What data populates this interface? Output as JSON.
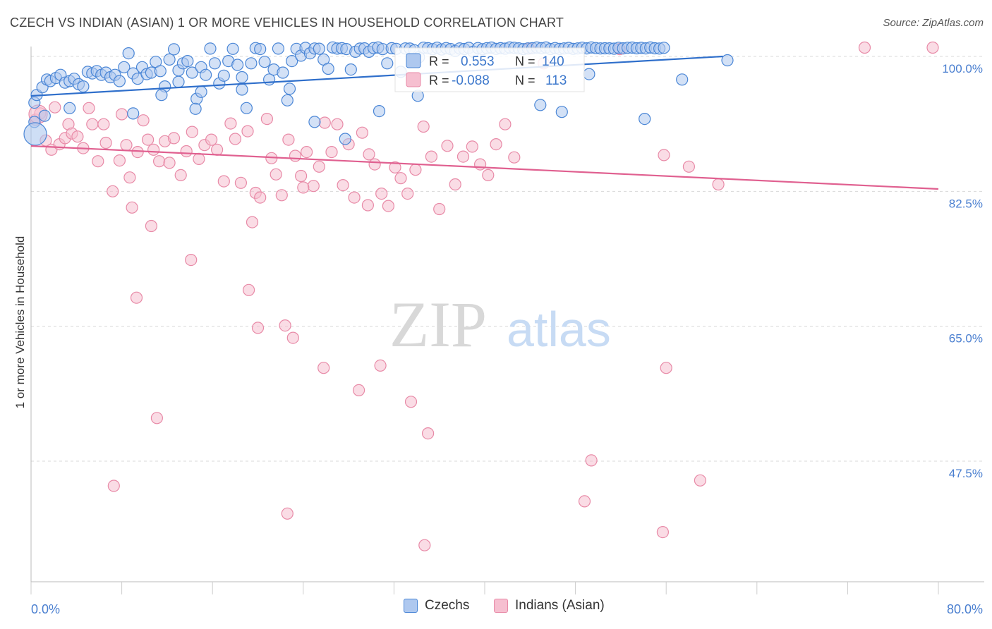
{
  "title": "CZECH VS INDIAN (ASIAN) 1 OR MORE VEHICLES IN HOUSEHOLD CORRELATION CHART",
  "source": "Source: ZipAtlas.com",
  "watermark": {
    "zip": "ZIP",
    "atlas": "atlas"
  },
  "colors": {
    "czech_fill": "#aec8ef",
    "czech_stroke": "#4a86d6",
    "czech_line": "#2f6fcb",
    "indian_fill": "#f6bfd0",
    "indian_stroke": "#e88aa7",
    "indian_line": "#e06090",
    "axis_text": "#4a7fd0",
    "grid": "#d8d8d8"
  },
  "stats_box": {
    "rows": [
      {
        "r_label": "R =",
        "r_value": "0.553",
        "n_label": "N =",
        "n_value": "140"
      },
      {
        "r_label": "R =",
        "r_value": "-0.088",
        "n_label": "N =",
        "n_value": "113"
      }
    ]
  },
  "legend": {
    "czech": "Czechs",
    "indian": "Indians (Asian)"
  },
  "chart_data": {
    "type": "scatter",
    "title": "CZECH VS INDIAN (ASIAN) 1 OR MORE VEHICLES IN HOUSEHOLD CORRELATION CHART",
    "xlabel": "",
    "ylabel": "1 or more Vehicles in Household",
    "xlim": [
      0,
      80
    ],
    "ylim": [
      30,
      100
    ],
    "x_tick_labels": [
      "0.0%",
      "80.0%"
    ],
    "y_ticks": [
      47.5,
      65.0,
      82.5,
      100.0
    ],
    "y_tick_labels": [
      "47.5%",
      "65.0%",
      "82.5%",
      "100.0%"
    ],
    "grid": true,
    "legend_position": "bottom",
    "series": [
      {
        "name": "Czechs",
        "r": 0.553,
        "n": 140,
        "trend": [
          [
            0,
            97.4
          ],
          [
            61,
            100.9
          ]
        ],
        "points": [
          [
            0.3,
            94.0
          ],
          [
            0.5,
            95.0
          ],
          [
            1.0,
            96.0
          ],
          [
            1.4,
            97.0
          ],
          [
            1.7,
            96.8
          ],
          [
            2.2,
            97.2
          ],
          [
            2.6,
            97.6
          ],
          [
            3.0,
            96.6
          ],
          [
            3.4,
            96.8
          ],
          [
            3.8,
            97.1
          ],
          [
            4.2,
            96.4
          ],
          [
            4.6,
            96.1
          ],
          [
            5.0,
            98.0
          ],
          [
            5.4,
            97.8
          ],
          [
            5.8,
            98.1
          ],
          [
            6.2,
            97.6
          ],
          [
            6.6,
            97.9
          ],
          [
            7.0,
            97.3
          ],
          [
            7.4,
            97.6
          ],
          [
            7.8,
            96.8
          ],
          [
            8.2,
            98.6
          ],
          [
            8.6,
            100.4
          ],
          [
            9.0,
            97.8
          ],
          [
            9.4,
            97.1
          ],
          [
            9.8,
            98.6
          ],
          [
            10.2,
            97.7
          ],
          [
            10.6,
            97.9
          ],
          [
            11.0,
            99.3
          ],
          [
            11.4,
            98.1
          ],
          [
            11.8,
            96.1
          ],
          [
            12.2,
            99.6
          ],
          [
            12.6,
            101.0
          ],
          [
            13.0,
            98.2
          ],
          [
            13.4,
            99.1
          ],
          [
            13.8,
            99.4
          ],
          [
            14.2,
            97.9
          ],
          [
            14.6,
            94.5
          ],
          [
            15.0,
            98.6
          ],
          [
            15.4,
            97.6
          ],
          [
            15.8,
            101.9
          ],
          [
            16.2,
            99.1
          ],
          [
            16.6,
            96.5
          ],
          [
            17.0,
            97.5
          ],
          [
            17.4,
            99.4
          ],
          [
            17.8,
            101.6
          ],
          [
            18.2,
            98.9
          ],
          [
            18.6,
            97.3
          ],
          [
            19.0,
            93.3
          ],
          [
            19.4,
            99.1
          ],
          [
            19.8,
            102.6
          ],
          [
            20.2,
            101.3
          ],
          [
            20.6,
            99.3
          ],
          [
            21.0,
            97.0
          ],
          [
            21.4,
            98.3
          ],
          [
            21.8,
            101.9
          ],
          [
            22.2,
            97.9
          ],
          [
            22.6,
            94.3
          ],
          [
            23.0,
            99.4
          ],
          [
            23.4,
            101.6
          ],
          [
            23.8,
            100.1
          ],
          [
            24.2,
            102.8
          ],
          [
            24.6,
            100.4
          ],
          [
            25.0,
            102.0
          ],
          [
            25.4,
            101.7
          ],
          [
            25.8,
            99.6
          ],
          [
            26.2,
            98.4
          ],
          [
            26.6,
            103.4
          ],
          [
            27.0,
            101.9
          ],
          [
            27.4,
            102.4
          ],
          [
            27.8,
            101.3
          ],
          [
            28.2,
            98.3
          ],
          [
            28.6,
            100.6
          ],
          [
            29.0,
            101.9
          ],
          [
            29.4,
            102.2
          ],
          [
            29.8,
            100.6
          ],
          [
            30.2,
            102.6
          ],
          [
            30.6,
            103.3
          ],
          [
            31.0,
            101.2
          ],
          [
            31.4,
            99.1
          ],
          [
            31.8,
            102.4
          ],
          [
            32.2,
            101.6
          ],
          [
            32.6,
            98.0
          ],
          [
            33.0,
            102.1
          ],
          [
            33.4,
            101.9
          ],
          [
            33.8,
            100.8
          ],
          [
            34.2,
            99.9
          ],
          [
            34.6,
            103.0
          ],
          [
            35.0,
            102.4
          ],
          [
            35.4,
            101.1
          ],
          [
            35.8,
            103.0
          ],
          [
            36.2,
            100.9
          ],
          [
            36.6,
            102.6
          ],
          [
            37.0,
            101.3
          ],
          [
            37.4,
            100.7
          ],
          [
            37.8,
            102.1
          ],
          [
            38.2,
            101.4
          ],
          [
            38.6,
            102.8
          ],
          [
            39.0,
            100.6
          ],
          [
            39.4,
            102.6
          ],
          [
            39.8,
            101.1
          ],
          [
            40.2,
            102.5
          ],
          [
            40.6,
            103.2
          ],
          [
            41.0,
            101.6
          ],
          [
            41.4,
            102.4
          ],
          [
            41.8,
            101.8
          ],
          [
            42.2,
            103.3
          ],
          [
            42.6,
            102.9
          ],
          [
            43.0,
            102.2
          ],
          [
            43.4,
            101.2
          ],
          [
            43.8,
            102.1
          ],
          [
            44.2,
            102.4
          ],
          [
            44.6,
            103.3
          ],
          [
            45.0,
            102.4
          ],
          [
            45.4,
            103.3
          ],
          [
            45.8,
            101.4
          ],
          [
            46.2,
            102.6
          ],
          [
            46.6,
            101.6
          ],
          [
            47.0,
            102.1
          ],
          [
            47.4,
            102.7
          ],
          [
            47.8,
            101.6
          ],
          [
            48.2,
            102.1
          ],
          [
            48.6,
            103.0
          ],
          [
            49.0,
            102.2
          ],
          [
            49.4,
            103.4
          ],
          [
            49.8,
            102.6
          ],
          [
            50.2,
            102.1
          ],
          [
            50.6,
            102.3
          ],
          [
            51.0,
            102.2
          ],
          [
            51.4,
            101.8
          ],
          [
            51.8,
            102.9
          ],
          [
            52.2,
            102.2
          ],
          [
            52.6,
            102.9
          ],
          [
            53.0,
            103.2
          ],
          [
            53.4,
            102.3
          ],
          [
            53.8,
            102.8
          ],
          [
            54.2,
            102.2
          ],
          [
            54.6,
            103.3
          ],
          [
            55.0,
            102.3
          ],
          [
            55.4,
            102.0
          ],
          [
            55.8,
            102.9
          ],
          [
            0.3,
            91.5
          ],
          [
            1.2,
            92.3
          ],
          [
            3.4,
            93.3
          ],
          [
            9.0,
            92.6
          ],
          [
            11.5,
            95.0
          ],
          [
            13.0,
            96.7
          ],
          [
            15.0,
            95.4
          ],
          [
            18.6,
            95.7
          ],
          [
            22.8,
            95.8
          ],
          [
            27.7,
            89.3
          ],
          [
            14.5,
            93.2
          ],
          [
            25.0,
            91.5
          ],
          [
            30.7,
            92.9
          ],
          [
            34.1,
            94.9
          ],
          [
            44.9,
            93.7
          ],
          [
            46.8,
            92.8
          ],
          [
            49.2,
            97.7
          ],
          [
            57.4,
            97.0
          ],
          [
            54.1,
            91.9
          ],
          [
            61.4,
            99.5
          ]
        ]
      },
      {
        "name": "Indians (Asian)",
        "r": -0.088,
        "n": 113,
        "trend": [
          [
            0,
            87.2
          ],
          [
            80,
            81.7
          ]
        ],
        "points": [
          [
            0.4,
            91.8
          ],
          [
            0.8,
            92.6
          ],
          [
            1.3,
            89.1
          ],
          [
            1.8,
            87.9
          ],
          [
            2.1,
            93.4
          ],
          [
            2.5,
            88.6
          ],
          [
            3.0,
            89.4
          ],
          [
            3.3,
            91.2
          ],
          [
            3.6,
            90.0
          ],
          [
            4.1,
            89.6
          ],
          [
            4.6,
            88.1
          ],
          [
            5.1,
            93.3
          ],
          [
            5.4,
            91.2
          ],
          [
            5.9,
            86.4
          ],
          [
            6.4,
            91.2
          ],
          [
            6.6,
            88.8
          ],
          [
            7.2,
            82.5
          ],
          [
            7.8,
            86.5
          ],
          [
            8.0,
            92.5
          ],
          [
            8.4,
            88.5
          ],
          [
            8.9,
            80.4
          ],
          [
            9.4,
            87.6
          ],
          [
            9.9,
            91.7
          ],
          [
            10.3,
            89.2
          ],
          [
            10.8,
            87.9
          ],
          [
            11.3,
            86.4
          ],
          [
            11.8,
            89.0
          ],
          [
            12.2,
            86.2
          ],
          [
            12.6,
            89.4
          ],
          [
            13.2,
            84.6
          ],
          [
            13.7,
            87.7
          ],
          [
            14.2,
            90.2
          ],
          [
            14.8,
            86.7
          ],
          [
            15.3,
            88.5
          ],
          [
            15.9,
            89.2
          ],
          [
            16.4,
            87.9
          ],
          [
            17.0,
            83.8
          ],
          [
            17.6,
            91.3
          ],
          [
            18.0,
            89.3
          ],
          [
            18.5,
            83.6
          ],
          [
            19.1,
            90.3
          ],
          [
            19.8,
            82.3
          ],
          [
            20.2,
            81.7
          ],
          [
            20.8,
            91.9
          ],
          [
            21.2,
            86.8
          ],
          [
            21.6,
            84.7
          ],
          [
            22.1,
            82.0
          ],
          [
            22.7,
            89.2
          ],
          [
            23.3,
            87.1
          ],
          [
            23.8,
            84.5
          ],
          [
            24.3,
            87.6
          ],
          [
            24.9,
            83.2
          ],
          [
            25.4,
            85.7
          ],
          [
            25.9,
            91.4
          ],
          [
            26.5,
            87.6
          ],
          [
            27.0,
            91.2
          ],
          [
            27.5,
            83.3
          ],
          [
            28.0,
            88.6
          ],
          [
            28.5,
            81.7
          ],
          [
            29.2,
            90.1
          ],
          [
            29.7,
            80.7
          ],
          [
            30.3,
            86.0
          ],
          [
            30.9,
            82.2
          ],
          [
            31.5,
            80.6
          ],
          [
            32.1,
            85.6
          ],
          [
            32.6,
            84.2
          ],
          [
            33.2,
            82.2
          ],
          [
            33.9,
            85.3
          ],
          [
            34.6,
            90.9
          ],
          [
            35.3,
            87.0
          ],
          [
            36.0,
            80.2
          ],
          [
            36.7,
            88.4
          ],
          [
            37.4,
            83.4
          ],
          [
            38.1,
            87.0
          ],
          [
            38.9,
            88.3
          ],
          [
            39.6,
            86.0
          ],
          [
            40.3,
            84.6
          ],
          [
            41.0,
            88.6
          ],
          [
            41.8,
            91.2
          ],
          [
            42.6,
            86.9
          ],
          [
            8.7,
            84.3
          ],
          [
            10.6,
            78.0
          ],
          [
            14.1,
            73.6
          ],
          [
            19.2,
            69.7
          ],
          [
            20.0,
            64.8
          ],
          [
            22.4,
            65.1
          ],
          [
            25.8,
            59.6
          ],
          [
            28.9,
            56.7
          ],
          [
            30.8,
            59.9
          ],
          [
            33.5,
            55.2
          ],
          [
            35.0,
            51.1
          ],
          [
            11.1,
            53.1
          ],
          [
            7.3,
            44.3
          ],
          [
            22.6,
            40.7
          ],
          [
            34.7,
            36.6
          ],
          [
            49.4,
            47.6
          ],
          [
            48.8,
            42.3
          ],
          [
            56.0,
            59.6
          ],
          [
            55.7,
            38.3
          ],
          [
            59.0,
            45.0
          ],
          [
            19.5,
            78.5
          ],
          [
            23.1,
            63.5
          ],
          [
            9.3,
            68.7
          ],
          [
            60.6,
            83.4
          ],
          [
            29.8,
            87.3
          ],
          [
            24.0,
            83.0
          ],
          [
            55.8,
            87.2
          ],
          [
            58.0,
            85.7
          ],
          [
            43.9,
            101.9
          ],
          [
            45.2,
            99.1
          ],
          [
            51.9,
            101.3
          ],
          [
            73.5,
            103.2
          ],
          [
            79.5,
            103.2
          ]
        ]
      }
    ]
  }
}
